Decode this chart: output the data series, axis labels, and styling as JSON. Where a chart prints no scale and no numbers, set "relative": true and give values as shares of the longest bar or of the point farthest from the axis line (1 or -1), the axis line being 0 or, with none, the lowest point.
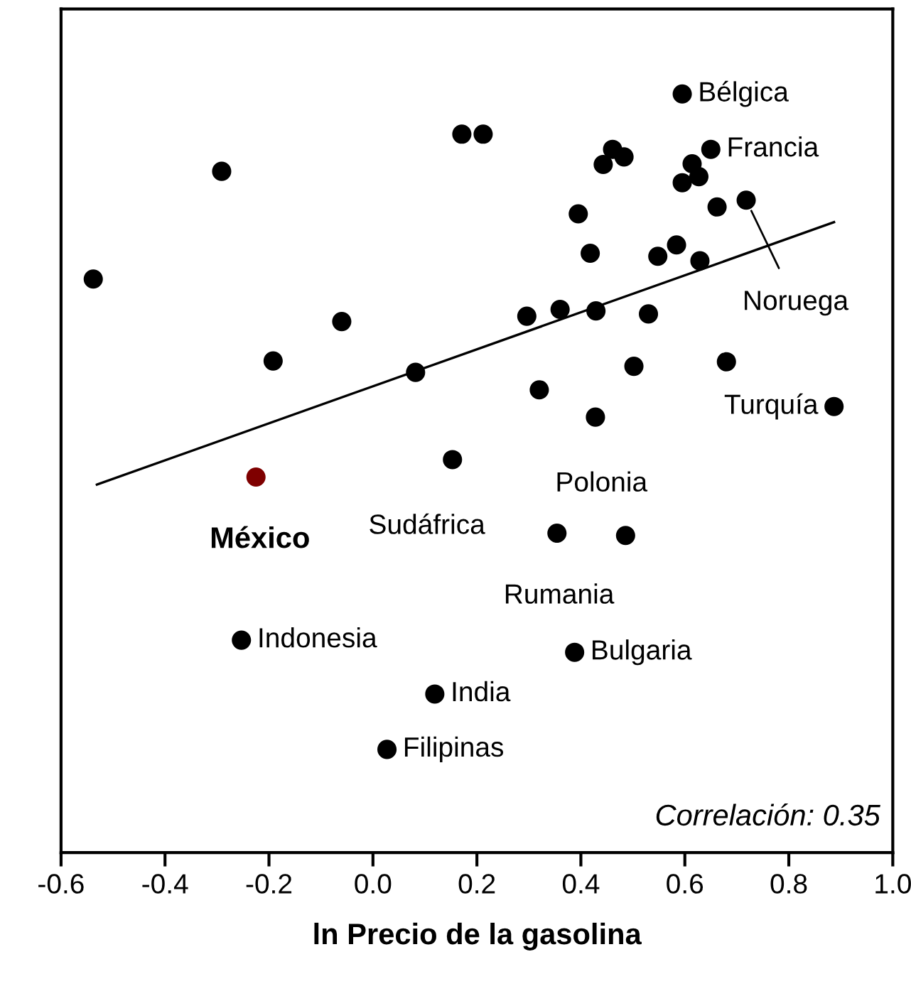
{
  "chart_data": {
    "type": "scatter",
    "xlabel": "ln Precio de la gasolina",
    "relative": true,
    "marker": "circle",
    "tick_labels": "x",
    "xlim": [
      -0.6,
      1.0
    ],
    "xticks": [
      {
        "value": -0.6,
        "label": "-0.6"
      },
      {
        "value": -0.4,
        "label": "-0.4"
      },
      {
        "value": -0.2,
        "label": "-0.2"
      },
      {
        "value": 0,
        "label": "0.0"
      },
      {
        "value": 0.2,
        "label": "0.2"
      },
      {
        "value": 0.4,
        "label": "0.4"
      },
      {
        "value": 0.6,
        "label": "0.6"
      },
      {
        "value": 0.8,
        "label": "0.8"
      },
      {
        "value": 1.0,
        "label": "1.0"
      }
    ],
    "series": [
      {
        "color": "#000000",
        "x": [
          -0.538,
          -0.291,
          0.171,
          0.212,
          -0.192,
          -0.06,
          0.082,
          0.595,
          0.65,
          0.461,
          0.483,
          0.443,
          0.614,
          0.627,
          0.595,
          0.662,
          0.718,
          0.395,
          0.418,
          0.548,
          0.584,
          0.629,
          0.296,
          0.36,
          0.429,
          0.53,
          0.68,
          0.502,
          0.32,
          0.428,
          0.887,
          0.153,
          0.354,
          0.486,
          0.388,
          -0.253,
          0.119,
          0.027
        ],
        "values": [
          0.756,
          0.898,
          0.947,
          0.947,
          0.648,
          0.7,
          0.633,
          1,
          0.927,
          0.927,
          0.917,
          0.907,
          0.908,
          0.891,
          0.883,
          0.851,
          0.86,
          0.842,
          0.79,
          0.786,
          0.801,
          0.78,
          0.707,
          0.716,
          0.714,
          0.71,
          0.647,
          0.641,
          0.61,
          0.574,
          0.588,
          0.518,
          0.421,
          0.418,
          0.264,
          0.28,
          0.209,
          0.136
        ]
      },
      {
        "color": "#7f0000",
        "x": [
          -0.225
        ],
        "values": [
          0.495
        ]
      },
      {
        "type": "line",
        "marker": "none",
        "color": "#000000",
        "x": [
          -0.531,
          0.887
        ],
        "values": [
          0.485,
          0.831
        ]
      }
    ],
    "annotations": [
      {
        "text": "Bélgica",
        "x": 0.595,
        "y": 1
      },
      {
        "text": "Francia",
        "x": 0.65,
        "y": 0.927
      },
      {
        "text": "Noruega",
        "x": 0.718,
        "y": 0.86
      },
      {
        "text": "Turquía",
        "x": 0.887,
        "y": 0.588
      },
      {
        "text": "Polonia",
        "x": 0.428,
        "y": 0.574
      },
      {
        "text": "Sudáfrica",
        "x": 0.153,
        "y": 0.518
      },
      {
        "text": "Rumania",
        "x": 0.354,
        "y": 0.421
      },
      {
        "text": "Bulgaria",
        "x": 0.388,
        "y": 0.264
      },
      {
        "text": "Indonesia",
        "x": -0.253,
        "y": 0.28
      },
      {
        "text": "India",
        "x": 0.119,
        "y": 0.209
      },
      {
        "text": "Filipinas",
        "x": 0.027,
        "y": 0.136
      },
      {
        "text": "México",
        "x": -0.225,
        "y": 0.495
      },
      "Correlación: 0.35"
    ]
  }
}
